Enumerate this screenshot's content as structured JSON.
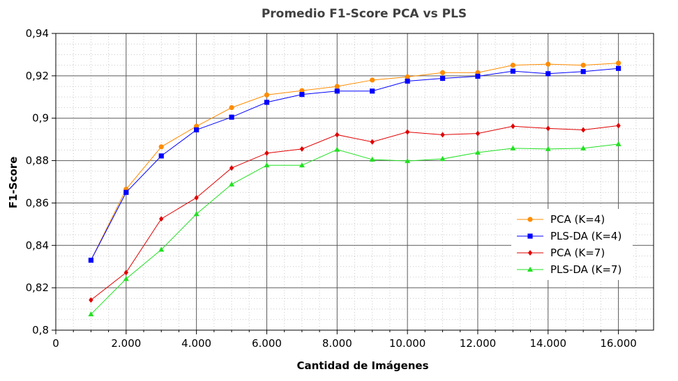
{
  "chart_data": {
    "type": "line",
    "title": "Promedio F1-Score PCA vs PLS",
    "xlabel": "Cantidad de Imágenes",
    "ylabel": "F1-Score",
    "xlim": [
      0,
      17000
    ],
    "ylim": [
      0.8,
      0.94
    ],
    "x_ticks": [
      0,
      2000,
      4000,
      6000,
      8000,
      10000,
      12000,
      14000,
      16000
    ],
    "x_tick_labels": [
      "0",
      "2.000",
      "4.000",
      "6.000",
      "8.000",
      "10.000",
      "12.000",
      "14.000",
      "16.000"
    ],
    "y_ticks": [
      0.8,
      0.82,
      0.84,
      0.86,
      0.88,
      0.9,
      0.92,
      0.94
    ],
    "y_tick_labels": [
      "0,8",
      "0,82",
      "0,84",
      "0,86",
      "0,88",
      "0,9",
      "0,92",
      "0,94"
    ],
    "grid": true,
    "legend_position": "bottom-right",
    "x": [
      1000,
      2000,
      3000,
      4000,
      5000,
      6000,
      7000,
      8000,
      9000,
      10000,
      11000,
      12000,
      13000,
      14000,
      15000,
      16000
    ],
    "series": [
      {
        "name": "PCA (K=4)",
        "color": "#ff8c00",
        "marker": "circle",
        "values": [
          0.833,
          0.8665,
          0.8865,
          0.8962,
          0.905,
          0.911,
          0.913,
          0.915,
          0.918,
          0.9195,
          0.9215,
          0.9215,
          0.925,
          0.9255,
          0.925,
          0.926
        ]
      },
      {
        "name": "PLS-DA (K=4)",
        "color": "#0000ff",
        "marker": "square",
        "values": [
          0.833,
          0.865,
          0.8822,
          0.8945,
          0.9005,
          0.9075,
          0.9112,
          0.9128,
          0.9128,
          0.9175,
          0.9188,
          0.9198,
          0.9222,
          0.921,
          0.922,
          0.9235
        ]
      },
      {
        "name": "PCA (K=7)",
        "color": "#e00000",
        "marker": "diamond",
        "values": [
          0.8142,
          0.8272,
          0.8525,
          0.8625,
          0.8765,
          0.8835,
          0.8855,
          0.8922,
          0.8888,
          0.8935,
          0.8922,
          0.8928,
          0.8962,
          0.8952,
          0.8945,
          0.8965
        ]
      },
      {
        "name": "PLS-DA (K=7)",
        "color": "#22e022",
        "marker": "triangle",
        "values": [
          0.8075,
          0.8242,
          0.838,
          0.8548,
          0.8688,
          0.8778,
          0.8778,
          0.8852,
          0.8805,
          0.8798,
          0.8808,
          0.8838,
          0.8858,
          0.8855,
          0.8858,
          0.8878
        ]
      }
    ]
  }
}
